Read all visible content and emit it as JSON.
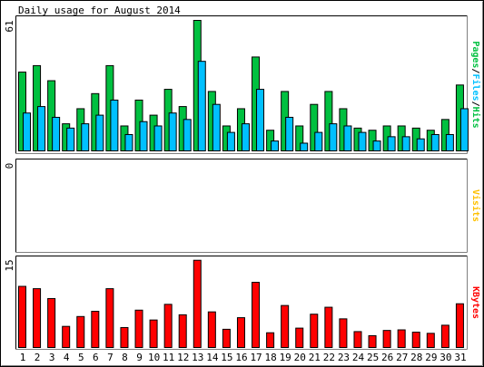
{
  "chart_data": {
    "type": "bar",
    "title": "Daily usage for August 2014",
    "categories": [
      "1",
      "2",
      "3",
      "4",
      "5",
      "6",
      "7",
      "8",
      "9",
      "10",
      "11",
      "12",
      "13",
      "14",
      "15",
      "16",
      "17",
      "18",
      "19",
      "20",
      "21",
      "22",
      "23",
      "24",
      "25",
      "26",
      "27",
      "28",
      "29",
      "30",
      "31"
    ],
    "weekend_days": [
      "2",
      "3",
      "9",
      "10",
      "16",
      "17",
      "23",
      "24",
      "30",
      "31"
    ],
    "colors": {
      "hits": "#00c040",
      "files": "#00c0ff",
      "visits": "#ffc000",
      "kbytes": "#ff0000",
      "weekday_label": "#000000",
      "weekend_label": "#00a040"
    },
    "panels": [
      {
        "id": "pages-files-hits",
        "max_label": "61",
        "ylim": [
          0,
          61
        ],
        "axis_label_parts": [
          {
            "text": "Pages",
            "color": "#00c040"
          },
          {
            "text": "/",
            "color": "#000000"
          },
          {
            "text": "Files",
            "color": "#00c0ff"
          },
          {
            "text": "/",
            "color": "#000000"
          },
          {
            "text": "Hits",
            "color": "#00c040"
          }
        ],
        "series": [
          {
            "name": "Hits",
            "color": "#00c040",
            "values": [
              37,
              40,
              33,
              13,
              20,
              27,
              40,
              12,
              24,
              17,
              29,
              21,
              61,
              28,
              12,
              20,
              44,
              10,
              28,
              12,
              22,
              28,
              20,
              11,
              10,
              12,
              12,
              11,
              10,
              15,
              31
            ]
          },
          {
            "name": "Files",
            "color": "#00c0ff",
            "values": [
              18,
              21,
              16,
              11,
              13,
              17,
              24,
              8,
              14,
              12,
              18,
              15,
              42,
              22,
              9,
              13,
              29,
              5,
              16,
              4,
              9,
              13,
              12,
              9,
              5,
              7,
              7,
              6,
              8,
              8,
              20
            ]
          }
        ]
      },
      {
        "id": "visits",
        "max_label": "0",
        "ylim": [
          0,
          1
        ],
        "axis_label_parts": [
          {
            "text": "Visits",
            "color": "#ffc000"
          }
        ],
        "series": [
          {
            "name": "Visits",
            "color": "#ffc000",
            "values": [
              0,
              0,
              0,
              0,
              0,
              0,
              0,
              0,
              0,
              0,
              0,
              0,
              0,
              0,
              0,
              0,
              0,
              0,
              0,
              0,
              0,
              0,
              0,
              0,
              0,
              0,
              0,
              0,
              0,
              0,
              0
            ]
          }
        ]
      },
      {
        "id": "kbytes",
        "max_label": "15",
        "ylim": [
          0,
          15
        ],
        "axis_label_parts": [
          {
            "text": "KBytes",
            "color": "#ff0000"
          }
        ],
        "series": [
          {
            "name": "KBytes",
            "color": "#ff0000",
            "values": [
              10.7,
              10.3,
              8.6,
              3.8,
              5.5,
              6.4,
              10.3,
              3.6,
              6.6,
              4.9,
              7.6,
              5.8,
              15.2,
              6.3,
              3.3,
              5.3,
              11.4,
              2.7,
              7.4,
              3.5,
              5.9,
              7.1,
              5.1,
              2.9,
              2.2,
              3.1,
              3.2,
              2.8,
              2.6,
              4.0,
              7.7
            ]
          }
        ]
      }
    ]
  }
}
